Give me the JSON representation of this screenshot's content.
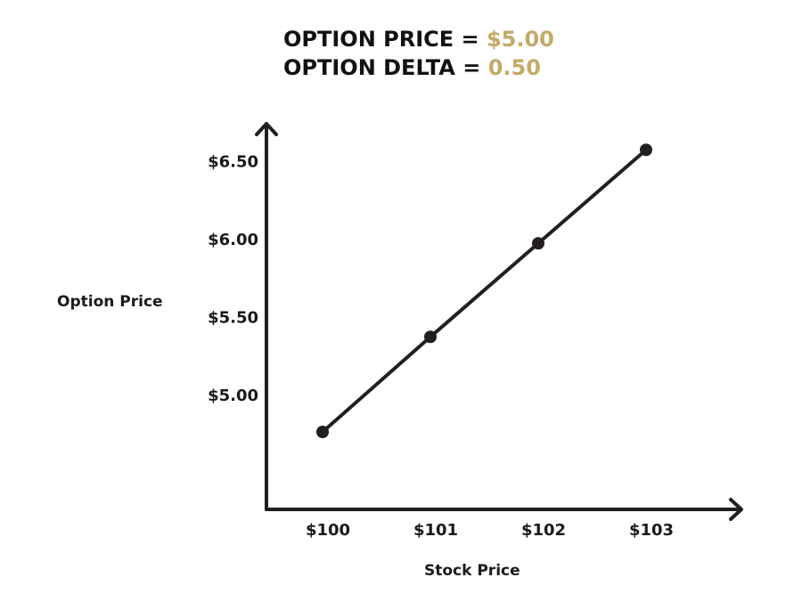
{
  "header": {
    "price_label": "OPTION PRICE = ",
    "price_value": "$5.00",
    "delta_label": "OPTION DELTA = ",
    "delta_value": "0.50",
    "value_color": "#c4aa68"
  },
  "chart_data": {
    "type": "line",
    "title": "",
    "xlabel": "Stock Price",
    "ylabel": "Option Price",
    "x_ticks": [
      "$100",
      "$101",
      "$102",
      "$103"
    ],
    "y_ticks": [
      "$5.00",
      "$5.50",
      "$6.00",
      "$6.50"
    ],
    "x": [
      100,
      101,
      102,
      103
    ],
    "y": [
      4.76,
      5.37,
      5.97,
      6.57
    ],
    "series": [
      {
        "values": [
          4.76,
          5.37,
          5.97,
          6.57
        ]
      }
    ],
    "xlim": [
      99.5,
      103.5
    ],
    "ylim": [
      4.0,
      6.8
    ],
    "grid": false,
    "legend": "none",
    "line_color": "#231f20"
  }
}
